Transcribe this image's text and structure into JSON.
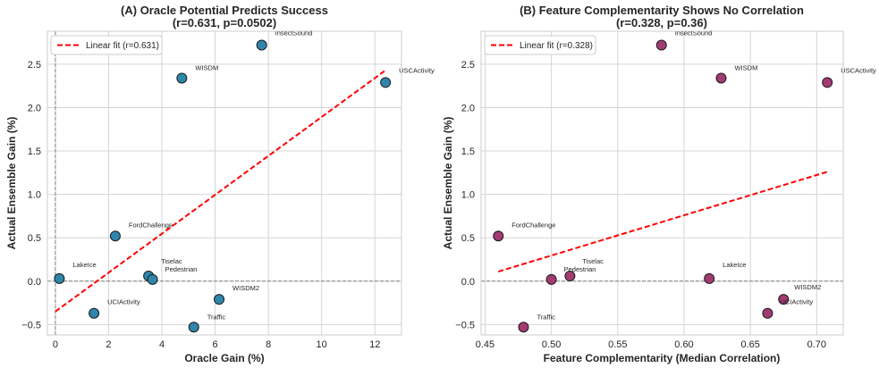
{
  "chart_data": [
    {
      "type": "scatter",
      "title": "(A) Oracle Potential Predicts Success",
      "subtitle": "(r=0.631, p=0.0502)",
      "xlabel": "Oracle Gain (%)",
      "ylabel": "Actual Ensemble Gain (%)",
      "xlim": [
        -0.3,
        13.0
      ],
      "ylim": [
        -0.62,
        2.88
      ],
      "xticks": [
        "0",
        "2",
        "4",
        "6",
        "8",
        "10",
        "12"
      ],
      "yticks": [
        "−0.5",
        "0.0",
        "0.5",
        "1.0",
        "1.5",
        "2.0",
        "2.5"
      ],
      "grid": true,
      "point_color": "#2e86ab",
      "legend": {
        "placement": "top-left",
        "label": "Linear fit (r=0.631)"
      },
      "fit": {
        "x": [
          0.0,
          12.4
        ],
        "y": [
          -0.35,
          2.43
        ],
        "color": "#ff0000"
      },
      "reference_lines": {
        "x": 0,
        "y": 0
      },
      "points": [
        {
          "label": "InsectSound",
          "x": 7.75,
          "y": 2.72
        },
        {
          "label": "WISDM",
          "x": 4.75,
          "y": 2.34
        },
        {
          "label": "USCActivity",
          "x": 12.4,
          "y": 2.29
        },
        {
          "label": "FordChallenge",
          "x": 2.25,
          "y": 0.52
        },
        {
          "label": "LakeIce",
          "x": 0.15,
          "y": 0.03
        },
        {
          "label": "Tiselac",
          "x": 3.5,
          "y": 0.06
        },
        {
          "label": "Pedestrian",
          "x": 3.65,
          "y": 0.02
        },
        {
          "label": "WISDM2",
          "x": 6.15,
          "y": -0.21
        },
        {
          "label": "UCIActivity",
          "x": 1.45,
          "y": -0.37
        },
        {
          "label": "Traffic",
          "x": 5.2,
          "y": -0.53
        }
      ]
    },
    {
      "type": "scatter",
      "title": "(B) Feature Complementarity Shows No Correlation",
      "subtitle": "(r=0.328, p=0.36)",
      "xlabel": "Feature Complementarity (Median Correlation)",
      "ylabel": "Actual Ensemble Gain (%)",
      "xlim": [
        0.447,
        0.72
      ],
      "ylim": [
        -0.62,
        2.88
      ],
      "xticks": [
        "0.45",
        "0.50",
        "0.55",
        "0.60",
        "0.65",
        "0.70"
      ],
      "yticks": [
        "−0.5",
        "0.0",
        "0.5",
        "1.0",
        "1.5",
        "2.0",
        "2.5"
      ],
      "grid": true,
      "point_color": "#a23b72",
      "legend": {
        "placement": "top-left",
        "label": "Linear fit (r=0.328)"
      },
      "fit": {
        "x": [
          0.46,
          0.708
        ],
        "y": [
          0.11,
          1.26
        ],
        "color": "#ff0000"
      },
      "reference_lines": {
        "y": 0
      },
      "points": [
        {
          "label": "InsectSound",
          "x": 0.583,
          "y": 2.72
        },
        {
          "label": "WISDM",
          "x": 0.628,
          "y": 2.34
        },
        {
          "label": "USCActivity",
          "x": 0.708,
          "y": 2.29
        },
        {
          "label": "FordChallenge",
          "x": 0.46,
          "y": 0.52
        },
        {
          "label": "LakeIce",
          "x": 0.619,
          "y": 0.03
        },
        {
          "label": "Tiselac",
          "x": 0.514,
          "y": 0.06
        },
        {
          "label": "Pedestrian",
          "x": 0.5,
          "y": 0.02
        },
        {
          "label": "WISDM2",
          "x": 0.675,
          "y": -0.21
        },
        {
          "label": "UCIActivity",
          "x": 0.663,
          "y": -0.37
        },
        {
          "label": "Traffic",
          "x": 0.479,
          "y": -0.53
        }
      ]
    }
  ]
}
